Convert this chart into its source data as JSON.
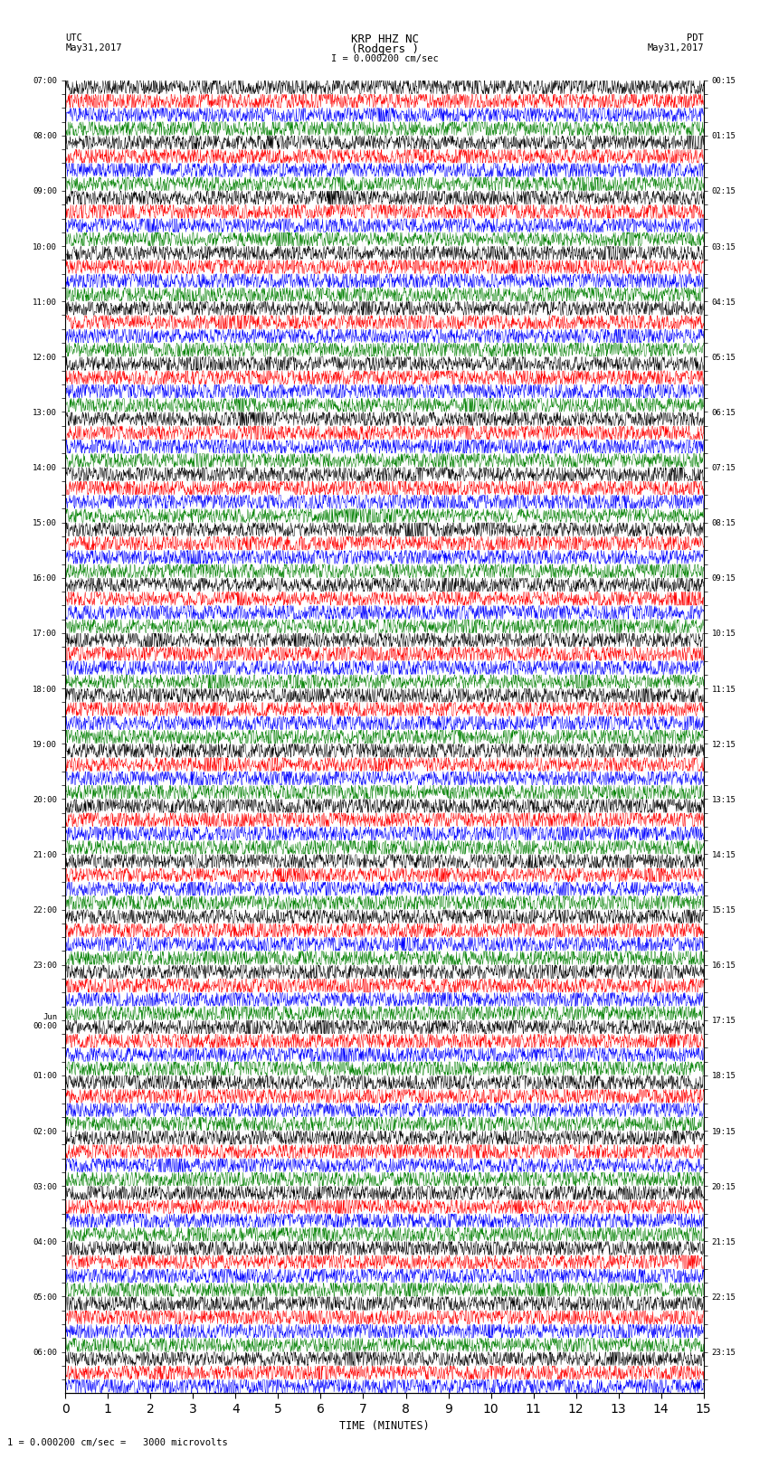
{
  "title_line1": "KRP HHZ NC",
  "title_line2": "(Rodgers )",
  "scale_label": "I = 0.000200 cm/sec",
  "left_label_line1": "UTC",
  "left_label_line2": "May31,2017",
  "right_label_line1": "PDT",
  "right_label_line2": "May31,2017",
  "bottom_label": "TIME (MINUTES)",
  "footer_label": "1 = 0.000200 cm/sec =   3000 microvolts",
  "xlabel_ticks": [
    0,
    1,
    2,
    3,
    4,
    5,
    6,
    7,
    8,
    9,
    10,
    11,
    12,
    13,
    14,
    15
  ],
  "utc_times": [
    "07:00",
    "",
    "",
    "",
    "08:00",
    "",
    "",
    "",
    "09:00",
    "",
    "",
    "",
    "10:00",
    "",
    "",
    "",
    "11:00",
    "",
    "",
    "",
    "12:00",
    "",
    "",
    "",
    "13:00",
    "",
    "",
    "",
    "14:00",
    "",
    "",
    "",
    "15:00",
    "",
    "",
    "",
    "16:00",
    "",
    "",
    "",
    "17:00",
    "",
    "",
    "",
    "18:00",
    "",
    "",
    "",
    "19:00",
    "",
    "",
    "",
    "20:00",
    "",
    "",
    "",
    "21:00",
    "",
    "",
    "",
    "22:00",
    "",
    "",
    "",
    "23:00",
    "",
    "",
    "",
    "Jun\n00:00",
    "",
    "",
    "",
    "01:00",
    "",
    "",
    "",
    "02:00",
    "",
    "",
    "",
    "03:00",
    "",
    "",
    "",
    "04:00",
    "",
    "",
    "",
    "05:00",
    "",
    "",
    "",
    "06:00",
    "",
    ""
  ],
  "pdt_times": [
    "00:15",
    "",
    "",
    "",
    "01:15",
    "",
    "",
    "",
    "02:15",
    "",
    "",
    "",
    "03:15",
    "",
    "",
    "",
    "04:15",
    "",
    "",
    "",
    "05:15",
    "",
    "",
    "",
    "06:15",
    "",
    "",
    "",
    "07:15",
    "",
    "",
    "",
    "08:15",
    "",
    "",
    "",
    "09:15",
    "",
    "",
    "",
    "10:15",
    "",
    "",
    "",
    "11:15",
    "",
    "",
    "",
    "12:15",
    "",
    "",
    "",
    "13:15",
    "",
    "",
    "",
    "14:15",
    "",
    "",
    "",
    "15:15",
    "",
    "",
    "",
    "16:15",
    "",
    "",
    "",
    "17:15",
    "",
    "",
    "",
    "18:15",
    "",
    "",
    "",
    "19:15",
    "",
    "",
    "",
    "20:15",
    "",
    "",
    "",
    "21:15",
    "",
    "",
    "",
    "22:15",
    "",
    "",
    "",
    "23:15",
    "",
    ""
  ],
  "num_rows": 95,
  "colors": [
    "black",
    "red",
    "blue",
    "green"
  ],
  "bg_color": "white",
  "time_minutes": 15,
  "figsize": [
    8.5,
    16.13
  ],
  "dpi": 100
}
